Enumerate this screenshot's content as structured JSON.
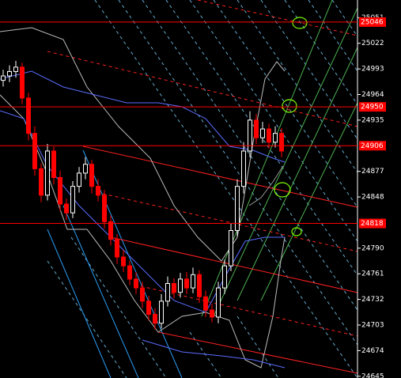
{
  "chart_data": {
    "type": "candlestick",
    "ylim": [
      24643,
      25071
    ],
    "yticks": [
      25051,
      25022,
      24993,
      24964,
      24935,
      24877,
      24848,
      24790,
      24761,
      24732,
      24703,
      24674,
      24645
    ],
    "open": [
      24980,
      24985,
      24990,
      24995,
      24960,
      24920,
      24880,
      24850,
      24900,
      24870,
      24840,
      24830,
      24860,
      24875,
      24885,
      24860,
      24850,
      24820,
      24800,
      24780,
      24770,
      24755,
      24745,
      24730,
      24715,
      24705,
      24730,
      24750,
      24740,
      24755,
      24745,
      24760,
      24735,
      24720,
      24712,
      24745,
      24770,
      24810,
      24860,
      24900,
      24935,
      24915,
      24925,
      24910,
      24920
    ],
    "high": [
      24992,
      24997,
      25002,
      25000,
      24966,
      24928,
      24886,
      24908,
      24905,
      24878,
      24846,
      24866,
      24882,
      24893,
      24890,
      24868,
      24856,
      24827,
      24806,
      24788,
      24776,
      24763,
      24752,
      24736,
      24722,
      24738,
      24758,
      24756,
      24762,
      24763,
      24768,
      24765,
      24742,
      24727,
      24752,
      24777,
      24818,
      24868,
      24910,
      24945,
      24942,
      24933,
      24931,
      24928,
      24926
    ],
    "low": [
      24973,
      24978,
      24983,
      24953,
      24912,
      24872,
      24842,
      24844,
      24862,
      24832,
      24822,
      24824,
      24853,
      24868,
      24852,
      24843,
      24812,
      24793,
      24772,
      24763,
      24748,
      24738,
      24722,
      24708,
      24698,
      24699,
      24724,
      24733,
      24734,
      24738,
      24739,
      24728,
      24712,
      24706,
      24705,
      24738,
      24764,
      24803,
      24852,
      24893,
      24908,
      24909,
      24903,
      24904,
      24893
    ],
    "close": [
      24985,
      24990,
      24995,
      24960,
      24920,
      24880,
      24850,
      24900,
      24870,
      24840,
      24830,
      24860,
      24875,
      24885,
      24860,
      24850,
      24820,
      24800,
      24780,
      24770,
      24755,
      24745,
      24730,
      24715,
      24705,
      24730,
      24750,
      24740,
      24755,
      24745,
      24760,
      24735,
      24720,
      24712,
      24745,
      24770,
      24810,
      24860,
      24900,
      24935,
      24915,
      24925,
      24910,
      24920,
      24900
    ],
    "levels": [
      25046,
      24950,
      24906,
      24818
    ],
    "up_color": "#ffffff",
    "down_color": "#ff0000",
    "level_color": "#ff0000"
  }
}
